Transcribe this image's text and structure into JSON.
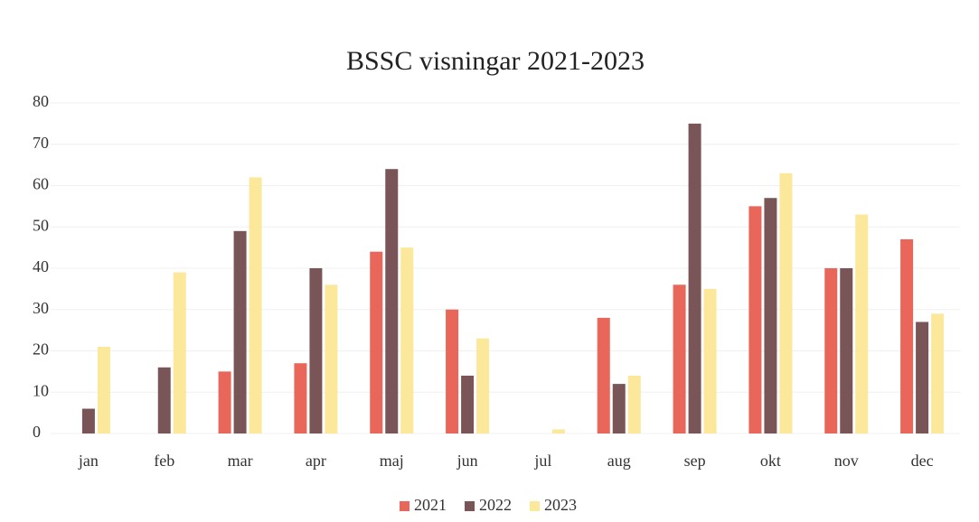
{
  "chart_data": {
    "type": "bar",
    "title": "BSSC visningar 2021-2023",
    "categories": [
      "jan",
      "feb",
      "mar",
      "apr",
      "maj",
      "jun",
      "jul",
      "aug",
      "sep",
      "okt",
      "nov",
      "dec"
    ],
    "series": [
      {
        "name": "2021",
        "color": "#e8665a",
        "values": [
          0,
          0,
          15,
          17,
          44,
          30,
          0,
          28,
          36,
          55,
          40,
          47
        ]
      },
      {
        "name": "2022",
        "color": "#7a5558",
        "values": [
          6,
          16,
          49,
          40,
          64,
          14,
          0,
          12,
          75,
          57,
          40,
          27
        ]
      },
      {
        "name": "2023",
        "color": "#fbe89a",
        "values": [
          21,
          39,
          62,
          36,
          45,
          23,
          1,
          14,
          35,
          63,
          53,
          29
        ]
      }
    ],
    "ylim": [
      0,
      80
    ],
    "yticks": [
      0,
      10,
      20,
      30,
      40,
      50,
      60,
      70,
      80
    ],
    "grid": true,
    "legend": "bottom"
  }
}
